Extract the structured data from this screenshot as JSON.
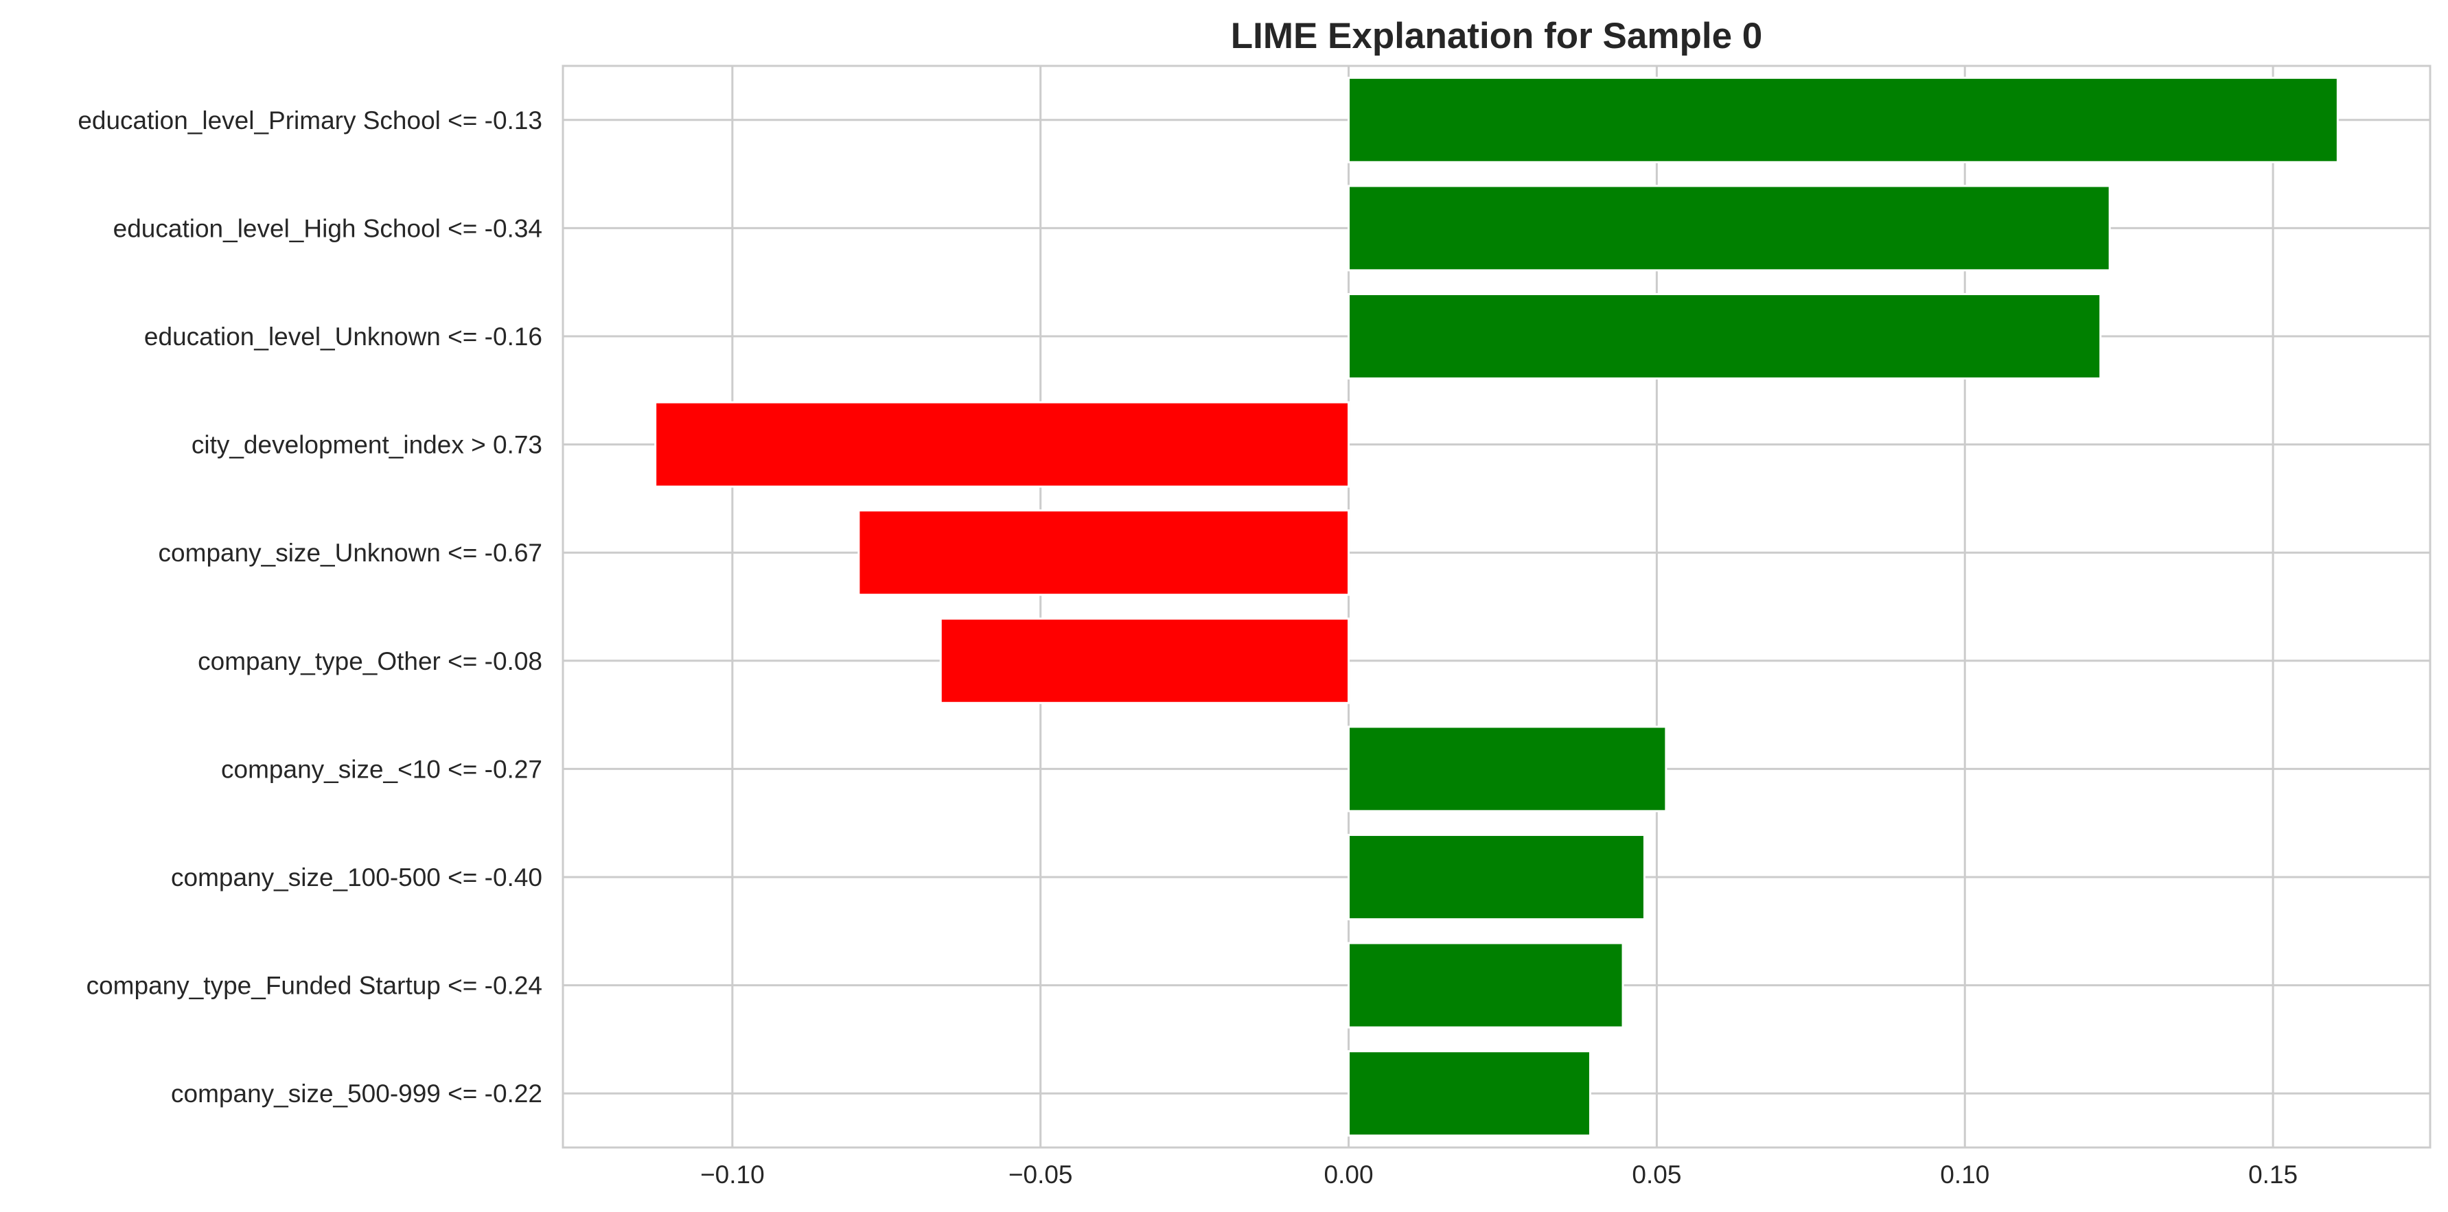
{
  "chart_data": {
    "type": "bar",
    "orientation": "horizontal",
    "title": "LIME Explanation for Sample 0",
    "xlabel": "",
    "ylabel": "",
    "xlim": [
      -0.1275,
      0.1755
    ],
    "xticks": [
      -0.1,
      -0.05,
      0.0,
      0.05,
      0.1,
      0.15
    ],
    "xtick_labels": [
      "−0.10",
      "−0.05",
      "0.00",
      "0.05",
      "0.10",
      "0.15"
    ],
    "grid": true,
    "positive_color": "#008000",
    "negative_color": "#ff0000",
    "categories": [
      "education_level_Primary School <= -0.13",
      "education_level_High School <= -0.34",
      "education_level_Unknown <= -0.16",
      "city_development_index > 0.73",
      "company_size_Unknown <= -0.67",
      "company_type_Other <= -0.08",
      "company_size_<10 <= -0.27",
      "company_size_100-500 <= -0.40",
      "company_type_Funded Startup <= -0.24",
      "company_size_500-999 <= -0.22"
    ],
    "values": [
      0.1605,
      0.1235,
      0.122,
      -0.1125,
      -0.0795,
      -0.0662,
      0.0515,
      0.048,
      0.0445,
      0.0392
    ]
  }
}
